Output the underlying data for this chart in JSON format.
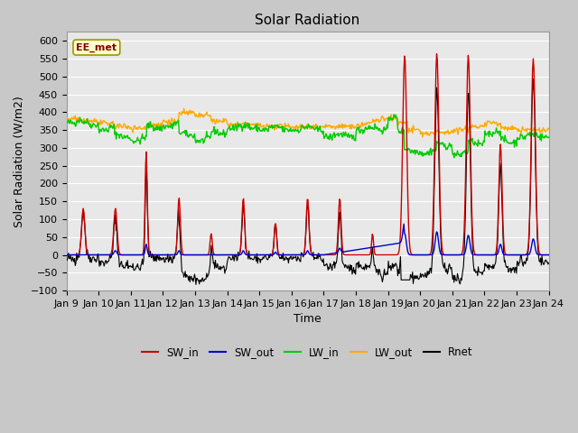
{
  "title": "Solar Radiation",
  "xlabel": "Time",
  "ylabel": "Solar Radiation (W/m2)",
  "ylim": [
    -100,
    625
  ],
  "yticks": [
    -100,
    -50,
    0,
    50,
    100,
    150,
    200,
    250,
    300,
    350,
    400,
    450,
    500,
    550,
    600
  ],
  "xtick_labels": [
    "Jan 9",
    "Jan 10",
    "Jan 11",
    "Jan 12",
    "Jan 13",
    "Jan 14",
    "Jan 15",
    "Jan 16",
    "Jan 17",
    "Jan 18",
    "Jan 19",
    "Jan 20",
    "Jan 21",
    "Jan 22",
    "Jan 23",
    "Jan 24"
  ],
  "annotation_text": "EE_met",
  "colors": {
    "SW_in": "#cc0000",
    "SW_out": "#0000cc",
    "LW_in": "#00cc00",
    "LW_out": "#ffaa00",
    "Rnet": "#000000"
  },
  "legend_labels": [
    "SW_in",
    "SW_out",
    "LW_in",
    "LW_out",
    "Rnet"
  ],
  "title_fontsize": 11,
  "label_fontsize": 9,
  "tick_fontsize": 8
}
